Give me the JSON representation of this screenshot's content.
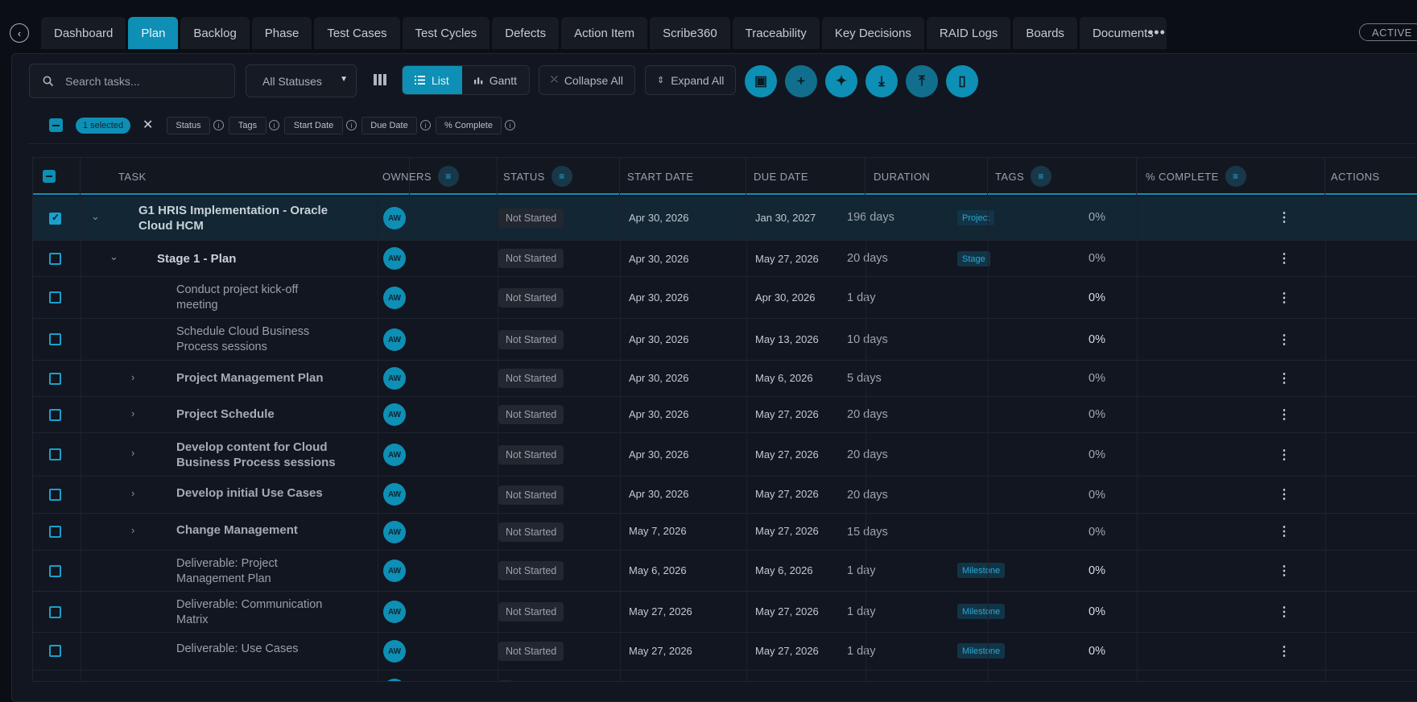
{
  "nav": {
    "back_icon": "chevron-left-circle-icon",
    "tabs": [
      {
        "label": "Dashboard"
      },
      {
        "label": "Plan"
      },
      {
        "label": "Backlog"
      },
      {
        "label": "Phase"
      },
      {
        "label": "Test Cases"
      },
      {
        "label": "Test Cycles"
      },
      {
        "label": "Defects"
      },
      {
        "label": "Action Item"
      },
      {
        "label": "Scribe360"
      },
      {
        "label": "Traceability"
      },
      {
        "label": "Key Decisions"
      },
      {
        "label": "RAID Logs"
      },
      {
        "label": "Boards"
      },
      {
        "label": "Documents"
      }
    ],
    "active_tab": "Plan",
    "more": "•••",
    "status_badge": "ACTIVE"
  },
  "toolbar": {
    "search_placeholder": "Search tasks...",
    "status_filter": "All Statuses",
    "view_list": "List",
    "view_gantt": "Gantt",
    "collapse_all": "Collapse All",
    "expand_all": "Expand All",
    "action_icons": [
      "calendar-sync-icon",
      "add-icon",
      "ai-sparkle-icon",
      "download-icon",
      "upload-icon",
      "delete-icon"
    ]
  },
  "selection": {
    "count_label": "1 selected",
    "bulk_fields": [
      "Status",
      "Tags",
      "Start Date",
      "Due Date",
      "% Complete"
    ]
  },
  "table": {
    "columns": {
      "task": "TASK",
      "owners": "OWNERS",
      "status": "STATUS",
      "start": "START DATE",
      "due": "DUE DATE",
      "duration": "DURATION",
      "tags": "TAGS",
      "complete": "% COMPLETE",
      "actions": "ACTIONS"
    },
    "rows": [
      {
        "task": "G1 HRIS Implementation - Oracle Cloud HCM",
        "owner": "AW",
        "status": "Not Started",
        "start": "Apr 30, 2026",
        "due": "Jan 30, 2027",
        "duration": "196 days",
        "tag": "Project",
        "complete": "0%"
      },
      {
        "task": "Stage 1 - Plan",
        "owner": "AW",
        "status": "Not Started",
        "start": "Apr 30, 2026",
        "due": "May 27, 2026",
        "duration": "20 days",
        "tag": "Stage",
        "complete": "0%"
      },
      {
        "task": "Conduct project kick-off meeting",
        "owner": "AW",
        "status": "Not Started",
        "start": "Apr 30, 2026",
        "due": "Apr 30, 2026",
        "duration": "1 day",
        "tag": "",
        "complete": "0%"
      },
      {
        "task": "Schedule Cloud Business Process sessions",
        "owner": "AW",
        "status": "Not Started",
        "start": "Apr 30, 2026",
        "due": "May 13, 2026",
        "duration": "10 days",
        "tag": "",
        "complete": "0%"
      },
      {
        "task": "Project Management Plan",
        "owner": "AW",
        "status": "Not Started",
        "start": "Apr 30, 2026",
        "due": "May 6, 2026",
        "duration": "5 days",
        "tag": "",
        "complete": "0%"
      },
      {
        "task": "Project Schedule",
        "owner": "AW",
        "status": "Not Started",
        "start": "Apr 30, 2026",
        "due": "May 27, 2026",
        "duration": "20 days",
        "tag": "",
        "complete": "0%"
      },
      {
        "task": "Develop content for Cloud Business Process sessions",
        "owner": "AW",
        "status": "Not Started",
        "start": "Apr 30, 2026",
        "due": "May 27, 2026",
        "duration": "20 days",
        "tag": "",
        "complete": "0%"
      },
      {
        "task": "Develop initial Use Cases",
        "owner": "AW",
        "status": "Not Started",
        "start": "Apr 30, 2026",
        "due": "May 27, 2026",
        "duration": "20 days",
        "tag": "",
        "complete": "0%"
      },
      {
        "task": "Change Management",
        "owner": "AW",
        "status": "Not Started",
        "start": "May 7, 2026",
        "due": "May 27, 2026",
        "duration": "15 days",
        "tag": "",
        "complete": "0%"
      },
      {
        "task": "Deliverable: Project Management Plan",
        "owner": "AW",
        "status": "Not Started",
        "start": "May 6, 2026",
        "due": "May 6, 2026",
        "duration": "1 day",
        "tag": "Milestone",
        "complete": "0%"
      },
      {
        "task": "Deliverable: Communication Matrix",
        "owner": "AW",
        "status": "Not Started",
        "start": "May 27, 2026",
        "due": "May 27, 2026",
        "duration": "1 day",
        "tag": "Milestone",
        "complete": "0%"
      },
      {
        "task": "Deliverable: Use Cases",
        "owner": "AW",
        "status": "Not Started",
        "start": "May 27, 2026",
        "due": "May 27, 2026",
        "duration": "1 day",
        "tag": "Milestone",
        "complete": "0%"
      }
    ]
  }
}
